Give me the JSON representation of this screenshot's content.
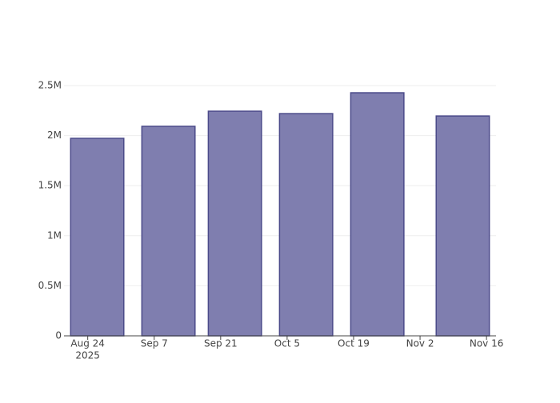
{
  "chart_data": {
    "type": "bar",
    "x": [
      "2025-08-26",
      "2025-09-10",
      "2025-09-24",
      "2025-10-09",
      "2025-10-24",
      "2025-11-11"
    ],
    "values": [
      1973000,
      2093000,
      2244000,
      2220000,
      2428000,
      2196000
    ],
    "color": "#7f7eaf",
    "edge_color": "#4c4b8a",
    "xlim": [
      "2025-08-19",
      "2025-11-18"
    ],
    "xticks": [
      {
        "value": "2025-08-24",
        "label": "Aug 24"
      },
      {
        "value": "2025-09-07",
        "label": "Sep 7"
      },
      {
        "value": "2025-09-21",
        "label": "Sep 21"
      },
      {
        "value": "2025-10-05",
        "label": "Oct 5"
      },
      {
        "value": "2025-10-19",
        "label": "Oct 19"
      },
      {
        "value": "2025-11-02",
        "label": "Nov 2"
      },
      {
        "value": "2025-11-16",
        "label": "Nov 16"
      }
    ],
    "x_year_label": "2025",
    "ylim": [
      0,
      2556000
    ],
    "yticks": [
      0,
      {
        "value": 500000,
        "label": "0.5M"
      },
      {
        "value": 1000000,
        "label": "1M"
      },
      {
        "value": 1500000,
        "label": "1.5M"
      },
      {
        "value": 2000000,
        "label": "2M"
      },
      {
        "value": 2500000,
        "label": "2.5M"
      }
    ],
    "grid": true
  }
}
